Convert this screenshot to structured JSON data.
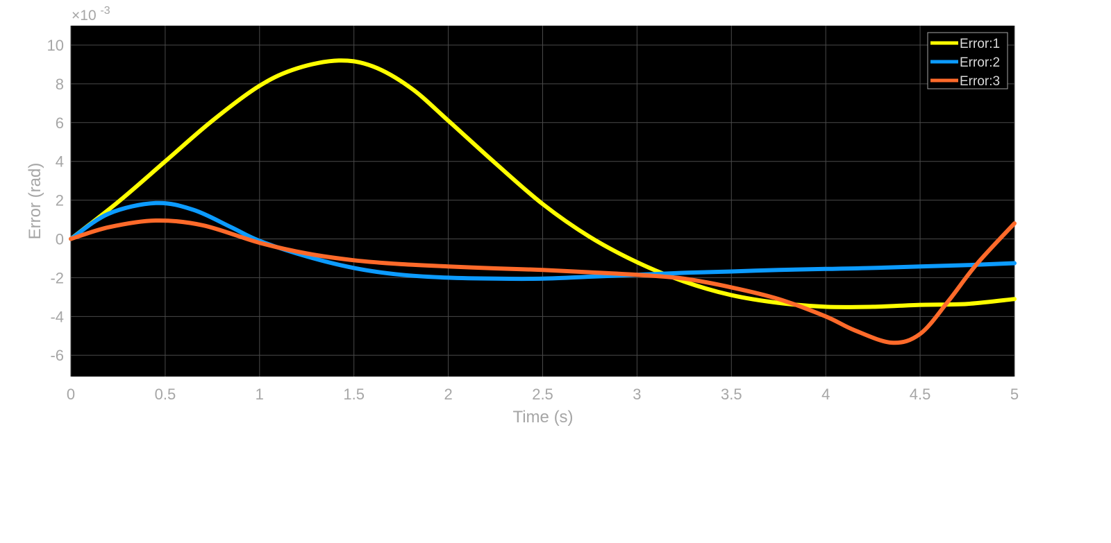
{
  "chart_data": {
    "type": "line",
    "title": "",
    "xlabel": "Time (s)",
    "ylabel": "Error (rad)",
    "y_exponent_label": "×10",
    "y_exponent_power": "-3",
    "xlim": [
      0,
      5
    ],
    "ylim": [
      -7.1,
      11
    ],
    "xticks": [
      0,
      0.5,
      1,
      1.5,
      2,
      2.5,
      3,
      3.5,
      4,
      4.5,
      5
    ],
    "xtick_labels": [
      "0",
      "0.5",
      "1",
      "1.5",
      "2",
      "2.5",
      "3",
      "3.5",
      "4",
      "4.5",
      "5"
    ],
    "yticks": [
      -6,
      -4,
      -2,
      0,
      2,
      4,
      6,
      8,
      10
    ],
    "ytick_labels": [
      "-6",
      "-4",
      "-2",
      "0",
      "2",
      "4",
      "6",
      "8",
      "10"
    ],
    "grid": true,
    "legend_position": "top-right",
    "background": "#000000",
    "series": [
      {
        "name": "Error:1",
        "color": "#ffff00",
        "x": [
          0,
          0.25,
          0.5,
          0.75,
          1.0,
          1.2,
          1.42,
          1.6,
          1.8,
          2.0,
          2.25,
          2.5,
          2.75,
          3.0,
          3.25,
          3.5,
          3.75,
          4.0,
          4.25,
          4.5,
          4.75,
          5.0
        ],
        "values": [
          0,
          1.9,
          4.0,
          6.1,
          7.9,
          8.8,
          9.2,
          8.9,
          7.8,
          6.1,
          3.9,
          1.8,
          0.1,
          -1.2,
          -2.2,
          -2.9,
          -3.3,
          -3.5,
          -3.5,
          -3.4,
          -3.35,
          -3.1
        ]
      },
      {
        "name": "Error:2",
        "color": "#0c9bff",
        "x": [
          0,
          0.2,
          0.45,
          0.65,
          0.85,
          1.0,
          1.25,
          1.5,
          1.75,
          2.0,
          2.25,
          2.5,
          2.75,
          3.0,
          3.25,
          3.5,
          3.75,
          4.0,
          4.25,
          4.5,
          4.75,
          5.0
        ],
        "values": [
          0,
          1.3,
          1.85,
          1.5,
          0.6,
          -0.1,
          -0.9,
          -1.5,
          -1.85,
          -2.0,
          -2.05,
          -2.05,
          -1.95,
          -1.85,
          -1.75,
          -1.68,
          -1.6,
          -1.55,
          -1.5,
          -1.42,
          -1.35,
          -1.25
        ]
      },
      {
        "name": "Error:3",
        "color": "#ff6a2a",
        "x": [
          0,
          0.2,
          0.45,
          0.7,
          1.0,
          1.25,
          1.5,
          1.75,
          2.0,
          2.25,
          2.5,
          2.75,
          3.0,
          3.25,
          3.5,
          3.75,
          4.0,
          4.15,
          4.35,
          4.5,
          4.65,
          4.8,
          5.0
        ],
        "values": [
          0,
          0.6,
          0.95,
          0.7,
          -0.2,
          -0.75,
          -1.1,
          -1.3,
          -1.42,
          -1.52,
          -1.6,
          -1.72,
          -1.85,
          -2.05,
          -2.5,
          -3.1,
          -4.0,
          -4.7,
          -5.35,
          -4.9,
          -3.2,
          -1.3,
          0.8
        ]
      }
    ]
  }
}
